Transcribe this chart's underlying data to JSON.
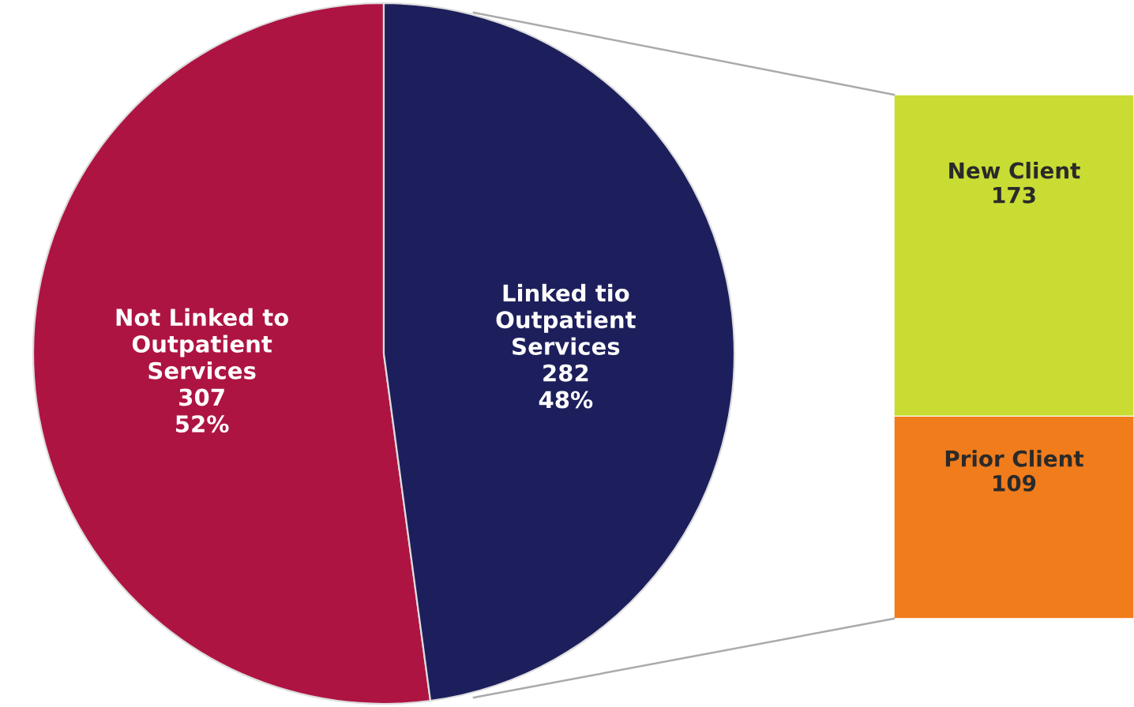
{
  "chart_data": [
    {
      "type": "pie",
      "categories": [
        "Not Linked to\nOutpatient\nServices",
        "Linked tio\nOutpatient\nServices"
      ],
      "values": [
        307,
        282
      ],
      "value_labels": [
        "307\n52%",
        "282\n48%"
      ],
      "colors": [
        "#ae1442",
        "#1d1f5c"
      ]
    },
    {
      "type": "bar",
      "stacked": true,
      "categories": [
        null
      ],
      "data_labels": true,
      "series": [
        {
          "name": "Prior Client",
          "color": "#f07c1c",
          "values": [
            109
          ]
        },
        {
          "name": "New Client",
          "color": "#c9dc34",
          "values": [
            173
          ]
        }
      ]
    }
  ]
}
